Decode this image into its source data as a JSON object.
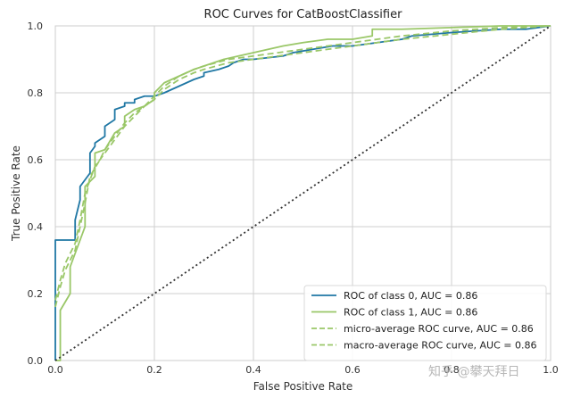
{
  "chart_data": {
    "type": "line",
    "title": "ROC Curves for CatBoostClassifier",
    "xlabel": "False Positive Rate",
    "ylabel": "True Positive Rate",
    "xlim": [
      0,
      1
    ],
    "ylim": [
      0,
      1
    ],
    "xticks": [
      "0.0",
      "0.2",
      "0.4",
      "0.6",
      "0.8",
      "1.0"
    ],
    "yticks": [
      "0.0",
      "0.2",
      "0.4",
      "0.6",
      "0.8",
      "1.0"
    ],
    "grid": true,
    "legend_position": "lower-right",
    "series": [
      {
        "name": "ROC of class 0, AUC = 0.86",
        "color": "#1f77a4",
        "dash": "solid",
        "x": [
          0,
          0,
          0.04,
          0.04,
          0.05,
          0.05,
          0.07,
          0.07,
          0.08,
          0.08,
          0.1,
          0.1,
          0.12,
          0.12,
          0.14,
          0.14,
          0.16,
          0.16,
          0.18,
          0.2,
          0.22,
          0.25,
          0.28,
          0.3,
          0.3,
          0.33,
          0.35,
          0.36,
          0.38,
          0.4,
          0.46,
          0.48,
          0.52,
          0.56,
          0.6,
          0.65,
          0.7,
          0.72,
          0.8,
          0.9,
          0.95,
          1
        ],
        "y": [
          0,
          0.36,
          0.36,
          0.42,
          0.48,
          0.52,
          0.56,
          0.62,
          0.64,
          0.65,
          0.67,
          0.7,
          0.72,
          0.75,
          0.76,
          0.77,
          0.77,
          0.78,
          0.79,
          0.79,
          0.8,
          0.82,
          0.84,
          0.85,
          0.86,
          0.87,
          0.88,
          0.89,
          0.9,
          0.9,
          0.91,
          0.92,
          0.93,
          0.94,
          0.94,
          0.95,
          0.96,
          0.97,
          0.98,
          0.99,
          0.99,
          1
        ]
      },
      {
        "name": "ROC of class 1, AUC = 0.86",
        "color": "#9ac768",
        "dash": "solid",
        "x": [
          0,
          0.01,
          0.01,
          0.03,
          0.03,
          0.05,
          0.06,
          0.06,
          0.08,
          0.08,
          0.1,
          0.12,
          0.14,
          0.14,
          0.16,
          0.18,
          0.2,
          0.2,
          0.22,
          0.25,
          0.28,
          0.3,
          0.32,
          0.34,
          0.37,
          0.4,
          0.43,
          0.46,
          0.5,
          0.55,
          0.6,
          0.64,
          0.64,
          0.7,
          0.8,
          0.9,
          1
        ],
        "y": [
          0,
          0,
          0.15,
          0.2,
          0.28,
          0.36,
          0.4,
          0.52,
          0.55,
          0.62,
          0.63,
          0.68,
          0.7,
          0.73,
          0.75,
          0.76,
          0.78,
          0.8,
          0.83,
          0.85,
          0.87,
          0.88,
          0.89,
          0.9,
          0.91,
          0.92,
          0.93,
          0.94,
          0.95,
          0.96,
          0.96,
          0.97,
          0.99,
          0.99,
          0.995,
          1,
          1
        ]
      },
      {
        "name": "micro-average ROC curve, AUC = 0.86",
        "color": "#9ac768",
        "dash": "dashed",
        "x": [
          0,
          0.01,
          0.02,
          0.04,
          0.05,
          0.06,
          0.07,
          0.09,
          0.1,
          0.12,
          0.14,
          0.16,
          0.18,
          0.2,
          0.22,
          0.25,
          0.28,
          0.3,
          0.35,
          0.4,
          0.45,
          0.5,
          0.55,
          0.6,
          0.65,
          0.7,
          0.8,
          0.9,
          1
        ],
        "y": [
          0.16,
          0.22,
          0.27,
          0.33,
          0.4,
          0.47,
          0.55,
          0.6,
          0.63,
          0.67,
          0.71,
          0.74,
          0.76,
          0.79,
          0.82,
          0.85,
          0.87,
          0.88,
          0.9,
          0.91,
          0.92,
          0.93,
          0.94,
          0.95,
          0.96,
          0.97,
          0.985,
          0.995,
          1
        ]
      },
      {
        "name": "macro-average ROC curve, AUC = 0.86",
        "color": "#9ac768",
        "dash": "dashed",
        "x": [
          0,
          0.01,
          0.02,
          0.04,
          0.05,
          0.06,
          0.08,
          0.1,
          0.12,
          0.14,
          0.16,
          0.18,
          0.2,
          0.22,
          0.25,
          0.28,
          0.3,
          0.35,
          0.4,
          0.45,
          0.5,
          0.55,
          0.6,
          0.65,
          0.7,
          0.8,
          0.9,
          1
        ],
        "y": [
          0.18,
          0.24,
          0.29,
          0.35,
          0.42,
          0.5,
          0.58,
          0.62,
          0.66,
          0.7,
          0.73,
          0.76,
          0.78,
          0.81,
          0.84,
          0.86,
          0.87,
          0.89,
          0.9,
          0.91,
          0.92,
          0.93,
          0.94,
          0.95,
          0.96,
          0.975,
          0.99,
          1
        ]
      },
      {
        "name": "",
        "color": "#333333",
        "dash": "dotted",
        "x": [
          0,
          1
        ],
        "y": [
          0,
          1
        ]
      }
    ]
  },
  "watermark": "知乎 @攀天拜日"
}
